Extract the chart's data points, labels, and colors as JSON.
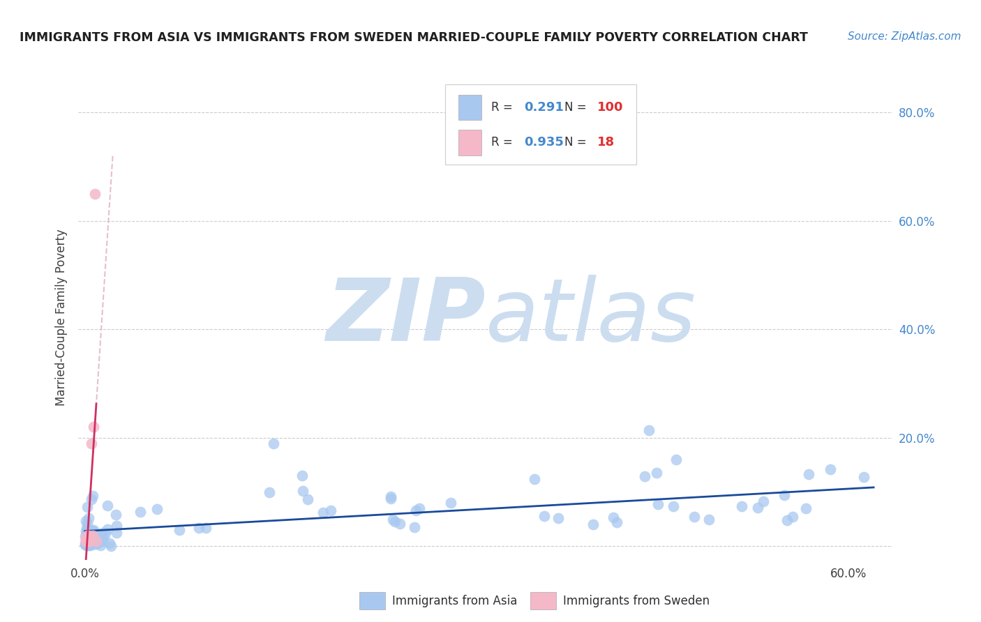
{
  "title": "IMMIGRANTS FROM ASIA VS IMMIGRANTS FROM SWEDEN MARRIED-COUPLE FAMILY POVERTY CORRELATION CHART",
  "source": "Source: ZipAtlas.com",
  "ylabel": "Married-Couple Family Poverty",
  "legend_label1": "Immigrants from Asia",
  "legend_label2": "Immigrants from Sweden",
  "R_asia": 0.291,
  "N_asia": 100,
  "R_sweden": 0.935,
  "N_sweden": 18,
  "color_asia": "#a8c8f0",
  "color_sweden": "#f4b8c8",
  "color_line_asia": "#1a4a9a",
  "color_line_sweden": "#d03060",
  "color_title": "#202020",
  "color_source": "#4488cc",
  "watermark_zip": "ZIP",
  "watermark_atlas": "atlas",
  "watermark_color": "#ccddf0",
  "background_color": "#ffffff",
  "grid_color": "#cccccc",
  "xlim": [
    -0.005,
    0.635
  ],
  "ylim": [
    -0.025,
    0.87
  ],
  "ytick_positions": [
    0.0,
    0.2,
    0.4,
    0.6,
    0.8
  ],
  "ytick_labels": [
    "",
    "20.0%",
    "40.0%",
    "60.0%",
    "80.0%"
  ],
  "xtick_positions": [
    0.0,
    0.15,
    0.3,
    0.45,
    0.6
  ],
  "xtick_labels": [
    "0.0%",
    "",
    "",
    "",
    "60.0%"
  ]
}
